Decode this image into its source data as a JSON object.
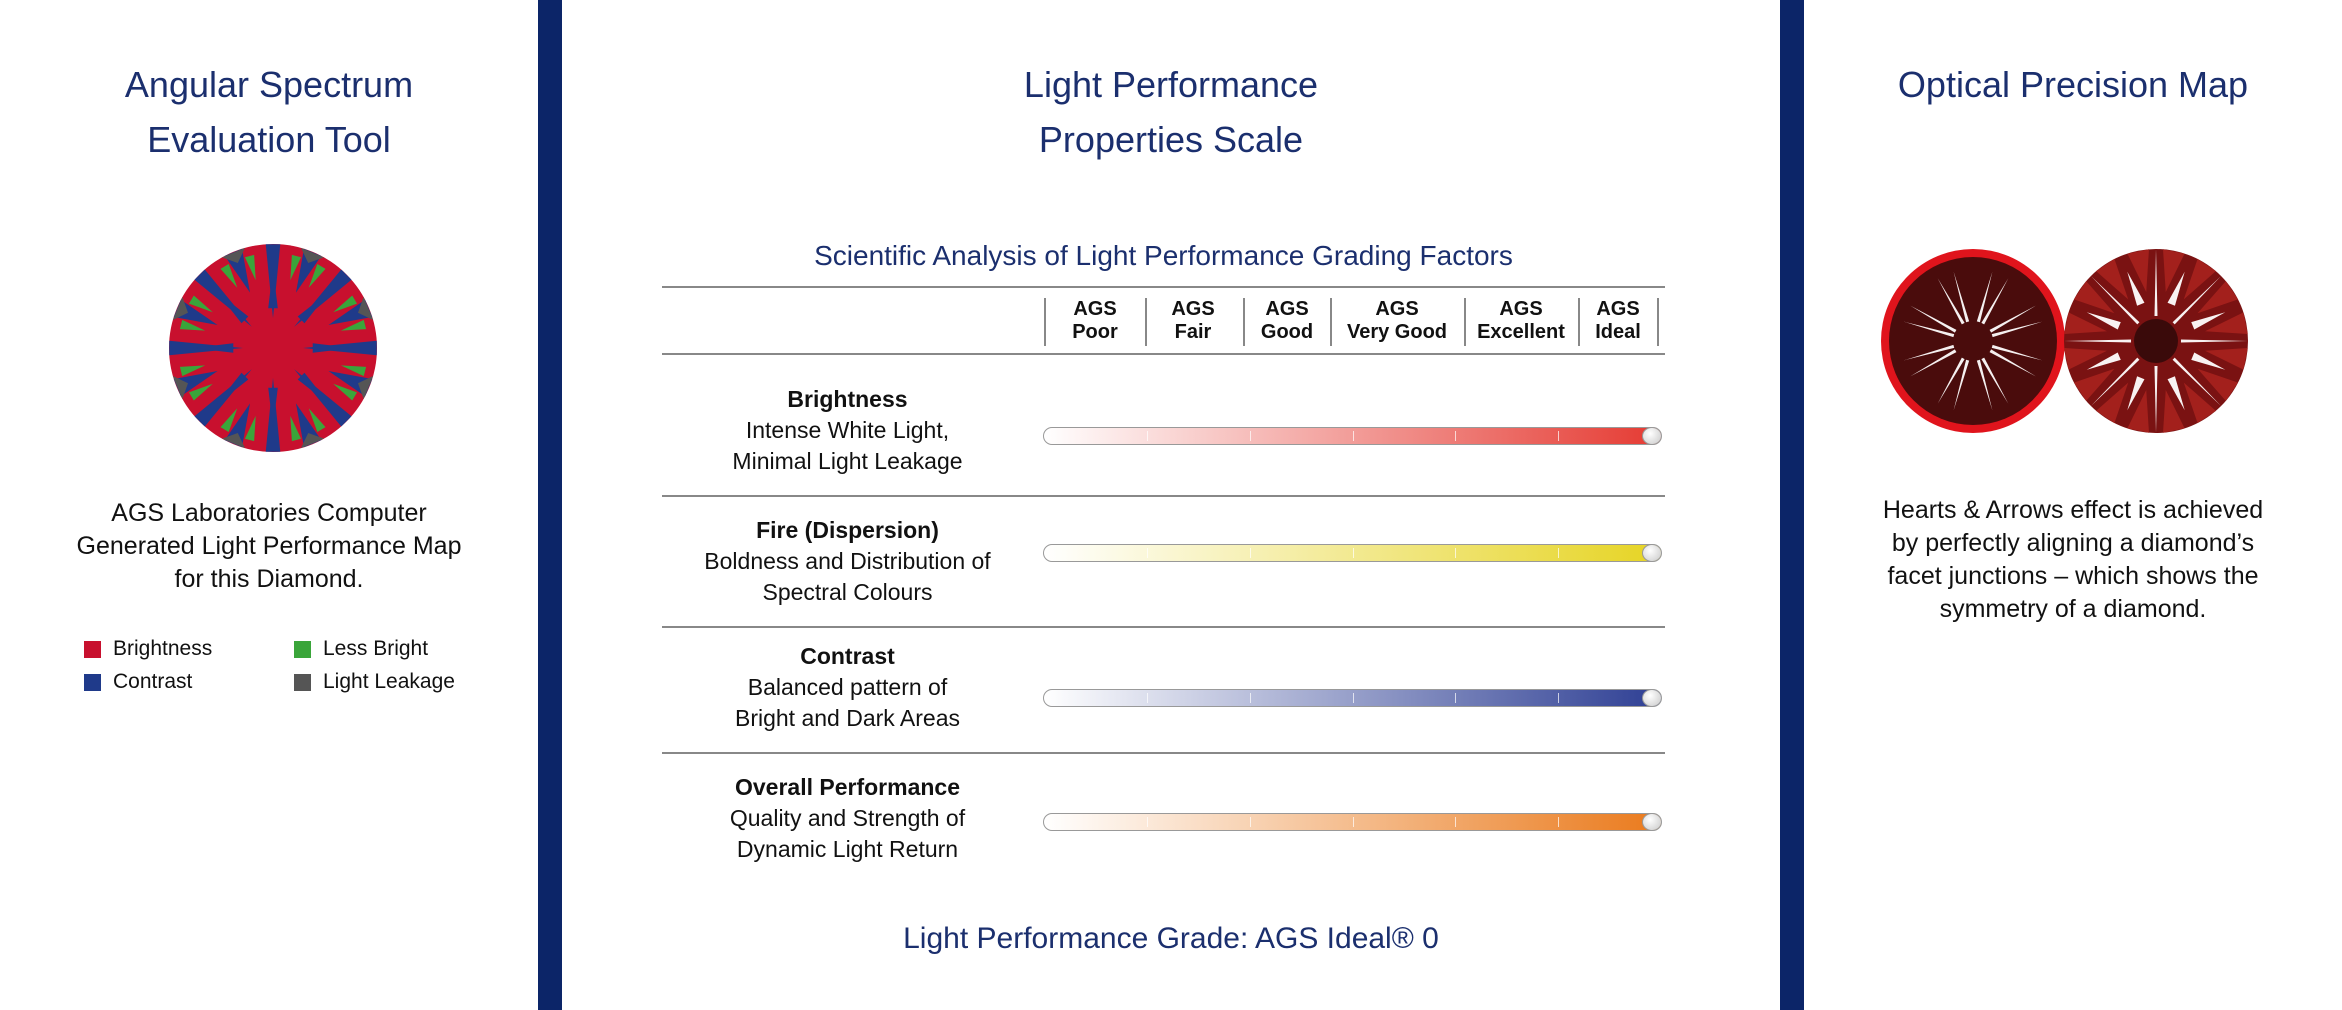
{
  "left": {
    "title_lines": [
      "Angular Spectrum",
      "Evaluation Tool"
    ],
    "caption_lines": [
      "AGS Laboratories Computer",
      "Generated Light Performance Map",
      "for this Diamond."
    ],
    "legend": [
      {
        "label": "Brightness",
        "color": "#c8102e"
      },
      {
        "label": "Less Bright",
        "color": "#3aa53a"
      },
      {
        "label": "Contrast",
        "color": "#1f3a8a"
      },
      {
        "label": "Light Leakage",
        "color": "#555555"
      }
    ]
  },
  "center": {
    "title_lines": [
      "Light Performance",
      "Properties Scale"
    ],
    "subtitle": "Scientific Analysis of Light Performance Grading Factors",
    "columns": [
      {
        "top": "AGS",
        "bottom": "Poor"
      },
      {
        "top": "AGS",
        "bottom": "Fair"
      },
      {
        "top": "AGS",
        "bottom": "Good"
      },
      {
        "top": "AGS",
        "bottom": "Very Good"
      },
      {
        "top": "AGS",
        "bottom": "Excellent"
      },
      {
        "top": "AGS",
        "bottom": "Ideal"
      }
    ],
    "rows": [
      {
        "name": "Brightness",
        "desc1": "Intense White Light,",
        "desc2": "Minimal Light Leakage",
        "color": "#e53a32",
        "level": 1.0
      },
      {
        "name": "Fire (Dispersion)",
        "desc1": "Boldness and Distribution of",
        "desc2": "Spectral Colours",
        "color": "#e6d423",
        "level": 1.0
      },
      {
        "name": "Contrast",
        "desc1": "Balanced pattern of",
        "desc2": "Bright and Dark Areas",
        "color": "#2e3f94",
        "level": 1.0
      },
      {
        "name": "Overall Performance",
        "desc1": "Quality and Strength of",
        "desc2": "Dynamic Light Return",
        "color": "#ea7a1c",
        "level": 1.0
      }
    ],
    "grade": "Light Performance Grade: AGS Ideal® 0"
  },
  "right": {
    "title": "Optical Precision Map",
    "caption_lines": [
      "Hearts & Arrows effect is achieved",
      "by perfectly aligning a diamond’s",
      "facet junctions – which shows the",
      "symmetry of a diamond."
    ]
  },
  "colors": {
    "divider": "#0c2568",
    "title": "#1b2f6e"
  }
}
